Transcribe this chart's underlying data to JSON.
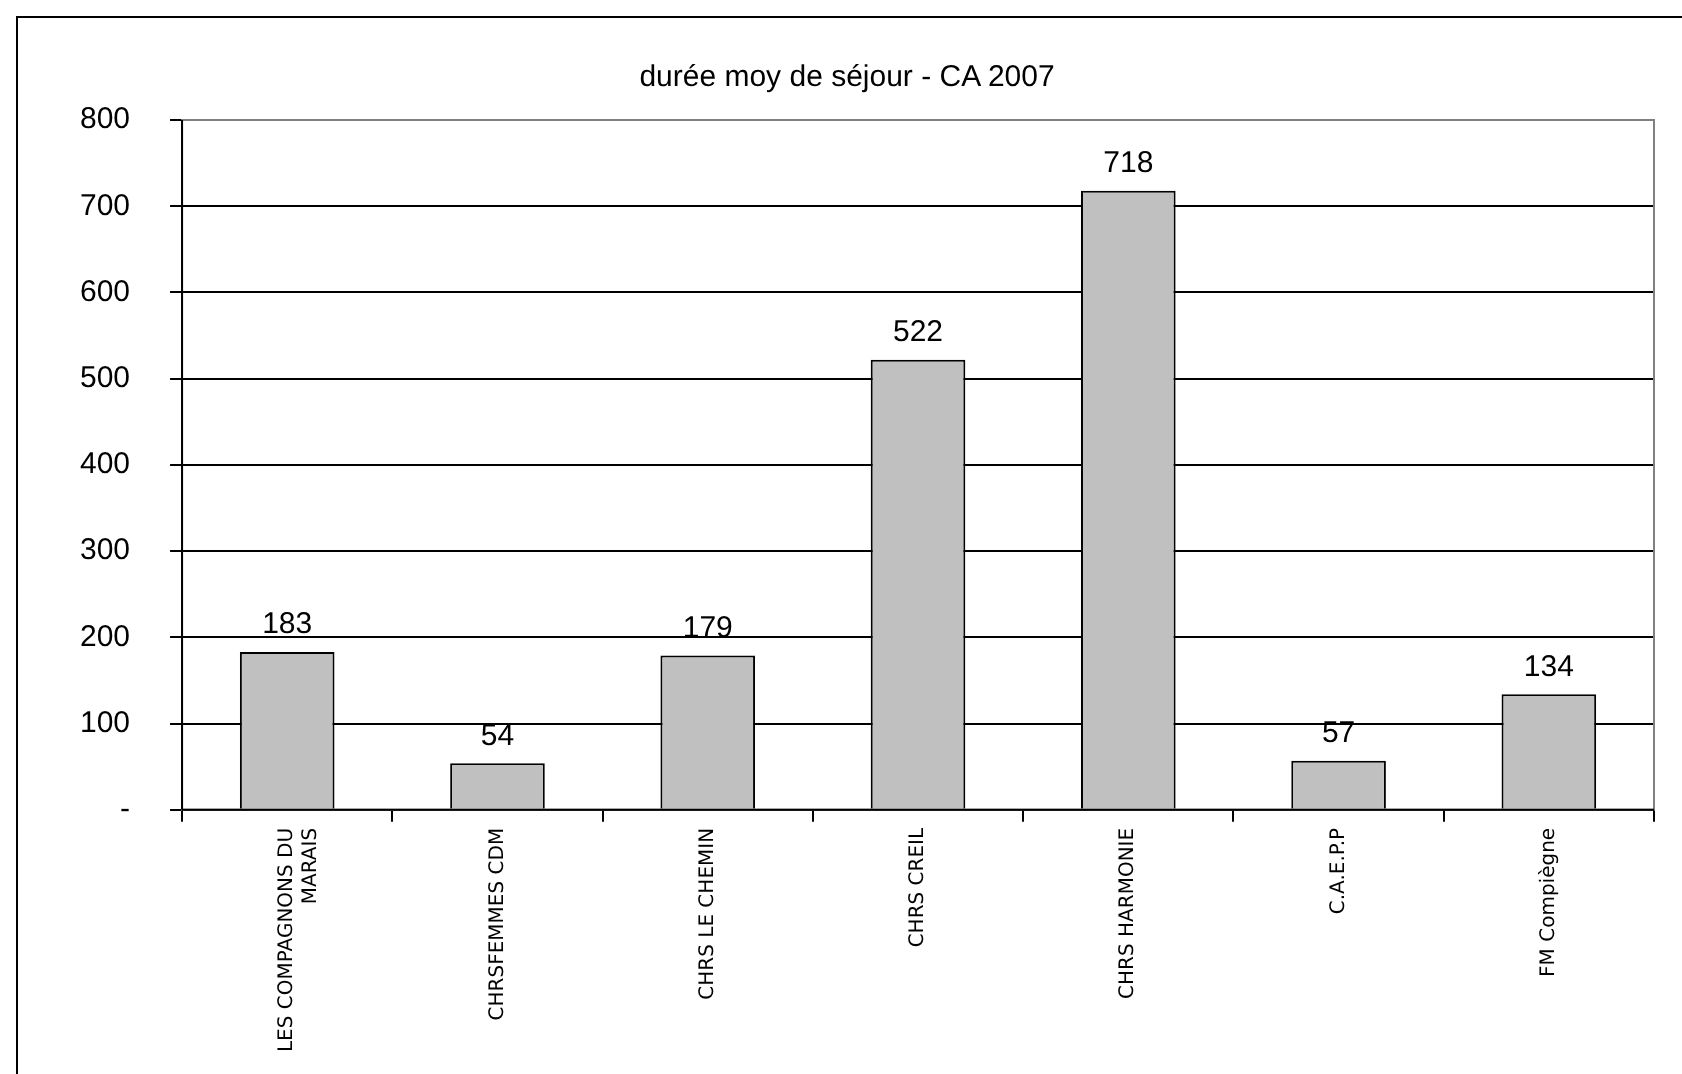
{
  "chart_data": {
    "type": "bar",
    "title": "durée moy de séjour - CA 2007",
    "categories": [
      "LES COMPAGNONS DU MARAIS",
      "CHRSFEMMES CDM",
      "CHRS LE CHEMIN",
      "CHRS CREIL",
      "CHRS HARMONIE",
      "C.A.E.P.P",
      "FM Compiègne"
    ],
    "values": [
      183,
      54,
      179,
      522,
      718,
      57,
      134
    ],
    "color": "#c0c0c0",
    "data_labels": true,
    "ylim": [
      0,
      800
    ],
    "yticks": [
      {
        "value": 0,
        "label": "-"
      },
      100,
      200,
      300,
      400,
      500,
      600,
      700,
      800
    ],
    "grid": "y",
    "legend": false
  }
}
